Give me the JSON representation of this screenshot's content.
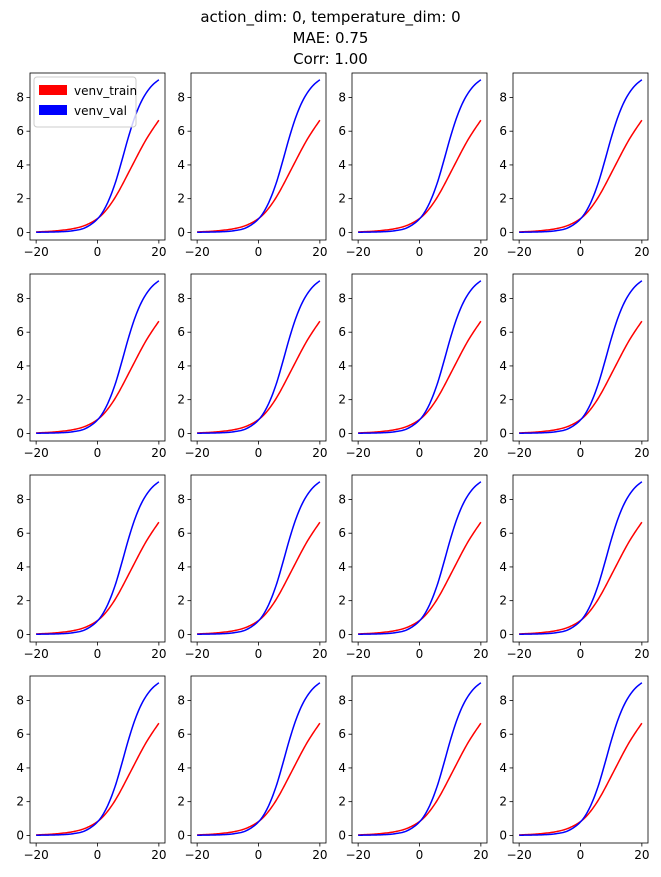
{
  "title": {
    "line1": "action_dim: 0, temperature_dim: 0",
    "line2": "MAE: 0.75",
    "line3": "Corr: 1.00"
  },
  "colors": {
    "venv_train": "#ff0000",
    "venv_val": "#0000ff"
  },
  "chart_data": {
    "type": "line",
    "grid": false,
    "layout_rows": 4,
    "layout_cols": 4,
    "xlim": [
      -22,
      22
    ],
    "ylim": [
      -0.45,
      9.45
    ],
    "xticks": [
      -20,
      0,
      20
    ],
    "yticks": [
      0,
      2,
      4,
      6,
      8
    ],
    "legend": {
      "placement": "top-left of first subplot",
      "entries": [
        "venv_train",
        "venv_val"
      ]
    },
    "x": [
      -20,
      -16,
      -12,
      -8,
      -4,
      0,
      2,
      4,
      6,
      8,
      10,
      12,
      14,
      16,
      18,
      20
    ],
    "series": [
      {
        "name": "venv_train",
        "color": "#ff0000",
        "values": [
          0.03,
          0.06,
          0.12,
          0.22,
          0.42,
          0.82,
          1.15,
          1.6,
          2.15,
          2.8,
          3.5,
          4.2,
          4.9,
          5.55,
          6.12,
          6.65
        ]
      },
      {
        "name": "venv_val",
        "color": "#0000ff",
        "values": [
          0.01,
          0.02,
          0.04,
          0.1,
          0.28,
          0.8,
          1.3,
          2.05,
          3.05,
          4.3,
          5.6,
          6.75,
          7.65,
          8.3,
          8.75,
          9.05
        ]
      }
    ]
  }
}
